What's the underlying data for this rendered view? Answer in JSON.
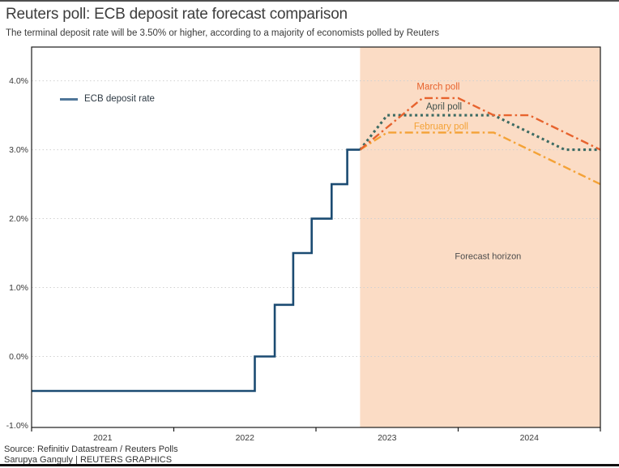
{
  "header": {
    "title": "Reuters poll: ECB deposit rate forecast comparison",
    "subtitle": "The terminal deposit rate will be 3.50% or higher, according to a majority of economists polled by Reuters"
  },
  "legend": {
    "ecb_label": "ECB deposit rate"
  },
  "footer": {
    "source_line": "Source: Refinitiv Datastream / Reuters Polls",
    "credit_line": "Sarupya Ganguly | REUTERS GRAPHICS"
  },
  "colors": {
    "ecb_line": "#1b4b72",
    "legend_swatch": "#4f7699",
    "march_poll": "#e7632e",
    "april_poll_line": "#3d6b63",
    "april_poll_label": "#3e4f4a",
    "february_poll": "#f4a236",
    "forecast_fill": "#fbdcc5",
    "grid": "#d0d0d0",
    "axis": "#1a1a1a",
    "tick_text": "#3a3a3a",
    "forecast_label_text": "#4d4d4d"
  },
  "chart_data": {
    "type": "line",
    "title": "Reuters poll: ECB deposit rate forecast comparison",
    "xlabel": "",
    "ylabel": "",
    "xlim": [
      2021,
      2025
    ],
    "ylim": [
      -1.03,
      4.49
    ],
    "grid": "horizontal-dotted",
    "legend_position": "top-left-inside",
    "x_tick_marks": [
      2021,
      2022,
      2023,
      2024,
      2025
    ],
    "x_tick_labels": [
      {
        "pos": 2021.5,
        "label": "2021"
      },
      {
        "pos": 2022.5,
        "label": "2022"
      },
      {
        "pos": 2023.5,
        "label": "2023"
      },
      {
        "pos": 2024.5,
        "label": "2024"
      }
    ],
    "y_ticks": [
      {
        "value": 4.0,
        "label": "4.0%",
        "gridline": true
      },
      {
        "value": 3.0,
        "label": "3.0%",
        "gridline": true
      },
      {
        "value": 2.0,
        "label": "2.0%",
        "gridline": true
      },
      {
        "value": 1.0,
        "label": "1.0%",
        "gridline": true
      },
      {
        "value": 0.0,
        "label": "0.0%",
        "gridline": true
      },
      {
        "value": -1.0,
        "label": "-1.0%",
        "gridline": false
      }
    ],
    "forecast_region": {
      "x_start": 2023.31,
      "x_end": 2025.0,
      "fill": "#fbdcc5",
      "label": "Forecast horizon",
      "label_x": 2024.21,
      "label_y": 1.46
    },
    "series": [
      {
        "name": "February poll",
        "kind": "forecast",
        "color": "#f4a236",
        "dash": "dashdot",
        "width": 2.4,
        "points": [
          [
            2023.31,
            3.0
          ],
          [
            2023.5,
            3.25
          ],
          [
            2024.25,
            3.25
          ],
          [
            2025.0,
            2.5
          ]
        ],
        "label": {
          "text": "February poll",
          "x": 2023.88,
          "y": 3.34,
          "color": "#f4a236"
        }
      },
      {
        "name": "April poll",
        "kind": "forecast",
        "color": "#3d6b63",
        "dash": "dotted",
        "width": 3.1,
        "points": [
          [
            2023.31,
            3.0
          ],
          [
            2023.5,
            3.5
          ],
          [
            2024.25,
            3.5
          ],
          [
            2024.75,
            3.0
          ],
          [
            2025.0,
            3.0
          ]
        ],
        "label": {
          "text": "April poll",
          "x": 2023.9,
          "y": 3.63,
          "color": "#3e4f4a"
        }
      },
      {
        "name": "March poll",
        "kind": "forecast",
        "color": "#e7632e",
        "dash": "dashdot",
        "width": 2.4,
        "points": [
          [
            2023.31,
            3.0
          ],
          [
            2023.75,
            3.75
          ],
          [
            2024.0,
            3.75
          ],
          [
            2024.25,
            3.5
          ],
          [
            2024.5,
            3.5
          ],
          [
            2025.0,
            3.0
          ]
        ],
        "label": {
          "text": "March poll",
          "x": 2023.86,
          "y": 3.92,
          "color": "#e7632e"
        }
      },
      {
        "name": "ECB deposit rate",
        "kind": "history-step",
        "color": "#1b4b72",
        "dash": "solid",
        "width": 2.6,
        "points": [
          [
            2021.0,
            -0.5
          ],
          [
            2022.57,
            -0.5
          ],
          [
            2022.57,
            0.0
          ],
          [
            2022.71,
            0.0
          ],
          [
            2022.71,
            0.75
          ],
          [
            2022.84,
            0.75
          ],
          [
            2022.84,
            1.5
          ],
          [
            2022.97,
            1.5
          ],
          [
            2022.97,
            2.0
          ],
          [
            2023.11,
            2.0
          ],
          [
            2023.11,
            2.5
          ],
          [
            2023.22,
            2.5
          ],
          [
            2023.22,
            3.0
          ],
          [
            2023.31,
            3.0
          ]
        ]
      }
    ]
  }
}
